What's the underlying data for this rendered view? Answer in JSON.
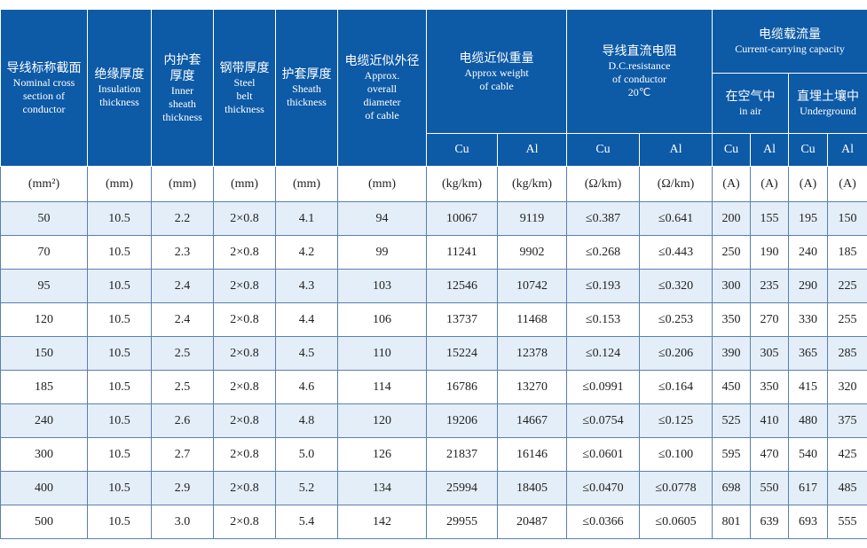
{
  "header": {
    "columns": [
      {
        "zh": [
          "导线标称截面"
        ],
        "en": [
          "Nominal cross",
          "section of",
          "conductor"
        ]
      },
      {
        "zh": [
          "绝缘厚度"
        ],
        "en": [
          "Insulation",
          "thickness"
        ]
      },
      {
        "zh": [
          "内护套",
          "厚度"
        ],
        "en": [
          "Inner",
          "sheath",
          "thickness"
        ]
      },
      {
        "zh": [
          "钢带厚度"
        ],
        "en": [
          "Steel",
          "belt",
          "thickness"
        ]
      },
      {
        "zh": [
          "护套厚度"
        ],
        "en": [
          "Sheath",
          "thickness"
        ]
      },
      {
        "zh": [
          "电缆近似外径"
        ],
        "en": [
          "Approx.",
          "overall",
          "diameter",
          "of cable"
        ]
      }
    ],
    "groups": [
      {
        "zh": [
          "电缆近似重量"
        ],
        "en": [
          "Approx weight",
          "of cable"
        ]
      },
      {
        "zh": [
          "导线直流电阻"
        ],
        "en": [
          "D.C.resistance",
          "of conductor",
          "20℃"
        ]
      },
      {
        "zh": [
          "电缆载流量"
        ],
        "en": [
          "Current-carrying capacity"
        ]
      }
    ],
    "subgroups": [
      {
        "zh": [
          "在空气中"
        ],
        "en": [
          "in air"
        ]
      },
      {
        "zh": [
          "直埋土壤中"
        ],
        "en": [
          "Underground"
        ]
      }
    ],
    "metals": [
      "Cu",
      "Al",
      "Cu",
      "Al",
      "Cu",
      "Al",
      "Cu",
      "Al"
    ]
  },
  "units": [
    "(mm²)",
    "(mm)",
    "(mm)",
    "(mm)",
    "(mm)",
    "(mm)",
    "(kg/km)",
    "(kg/km)",
    "(Ω/km)",
    "(Ω/km)",
    "(A)",
    "(A)",
    "(A)",
    "(A)"
  ],
  "rows": [
    [
      "50",
      "10.5",
      "2.2",
      "2×0.8",
      "4.1",
      "94",
      "10067",
      "9119",
      "≤0.387",
      "≤0.641",
      "200",
      "155",
      "195",
      "150"
    ],
    [
      "70",
      "10.5",
      "2.3",
      "2×0.8",
      "4.2",
      "99",
      "11241",
      "9902",
      "≤0.268",
      "≤0.443",
      "250",
      "190",
      "240",
      "185"
    ],
    [
      "95",
      "10.5",
      "2.4",
      "2×0.8",
      "4.3",
      "103",
      "12546",
      "10742",
      "≤0.193",
      "≤0.320",
      "300",
      "235",
      "290",
      "225"
    ],
    [
      "120",
      "10.5",
      "2.4",
      "2×0.8",
      "4.4",
      "106",
      "13737",
      "11468",
      "≤0.153",
      "≤0.253",
      "350",
      "270",
      "330",
      "255"
    ],
    [
      "150",
      "10.5",
      "2.5",
      "2×0.8",
      "4.5",
      "110",
      "15224",
      "12378",
      "≤0.124",
      "≤0.206",
      "390",
      "305",
      "365",
      "285"
    ],
    [
      "185",
      "10.5",
      "2.5",
      "2×0.8",
      "4.6",
      "114",
      "16786",
      "13270",
      "≤0.0991",
      "≤0.164",
      "450",
      "350",
      "415",
      "320"
    ],
    [
      "240",
      "10.5",
      "2.6",
      "2×0.8",
      "4.8",
      "120",
      "19206",
      "14667",
      "≤0.0754",
      "≤0.125",
      "525",
      "410",
      "480",
      "375"
    ],
    [
      "300",
      "10.5",
      "2.7",
      "2×0.8",
      "5.0",
      "126",
      "21837",
      "16146",
      "≤0.0601",
      "≤0.100",
      "595",
      "470",
      "540",
      "425"
    ],
    [
      "400",
      "10.5",
      "2.9",
      "2×0.8",
      "5.2",
      "134",
      "25994",
      "18405",
      "≤0.0470",
      "≤0.0778",
      "698",
      "550",
      "617",
      "485"
    ],
    [
      "500",
      "10.5",
      "3.0",
      "2×0.8",
      "5.4",
      "142",
      "29955",
      "20487",
      "≤0.0366",
      "≤0.0605",
      "801",
      "639",
      "693",
      "555"
    ]
  ]
}
